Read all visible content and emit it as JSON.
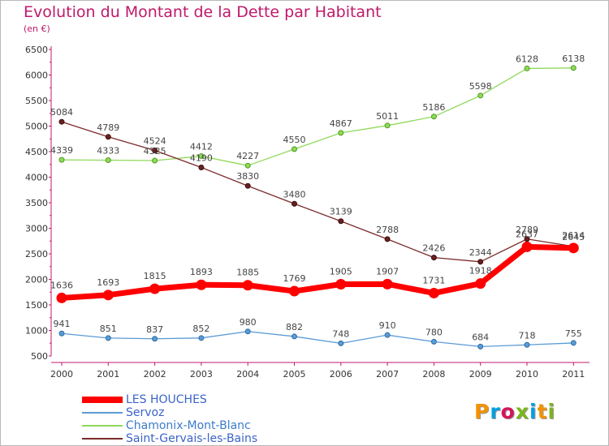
{
  "title": "Evolution du Montant de la Dette par Habitant",
  "subtitle": "(en €)",
  "logo": {
    "text": "Proxiti",
    "colors": [
      "#f39200",
      "#00a0e0",
      "#d4145a",
      "#7ab51d",
      "#00a0e0",
      "#f39200",
      "#7ab51d"
    ]
  },
  "chart_data": {
    "type": "line",
    "x": [
      "2000",
      "2001",
      "2002",
      "2003",
      "2004",
      "2005",
      "2006",
      "2007",
      "2008",
      "2009",
      "2010",
      "2011"
    ],
    "ylim": [
      500,
      6500
    ],
    "yticks": [
      500,
      1000,
      1500,
      2000,
      2500,
      3000,
      3500,
      4000,
      4500,
      5000,
      5500,
      6000,
      6500
    ],
    "grid": false,
    "legend_position": "bottom-left",
    "series": [
      {
        "name": "LES HOUCHES",
        "color": "#ff0000",
        "values": [
          1636,
          1693,
          1815,
          1893,
          1885,
          1769,
          1905,
          1907,
          1731,
          1918,
          2637,
          2614
        ]
      },
      {
        "name": "Servoz",
        "color": "#5b9bd5",
        "values": [
          941,
          851,
          837,
          852,
          980,
          882,
          748,
          910,
          780,
          684,
          718,
          755
        ]
      },
      {
        "name": "Chamonix-Mont-Blanc",
        "color": "#8fd95b",
        "values": [
          4339,
          4333,
          4325,
          4412,
          4227,
          4550,
          4867,
          5011,
          5186,
          5598,
          6128,
          6138
        ]
      },
      {
        "name": "Saint-Gervais-les-Bains",
        "color": "#7b2b2b",
        "values": [
          5084,
          4789,
          4524,
          4190,
          3830,
          3480,
          3139,
          2788,
          2426,
          2344,
          2789,
          2645
        ]
      }
    ]
  }
}
